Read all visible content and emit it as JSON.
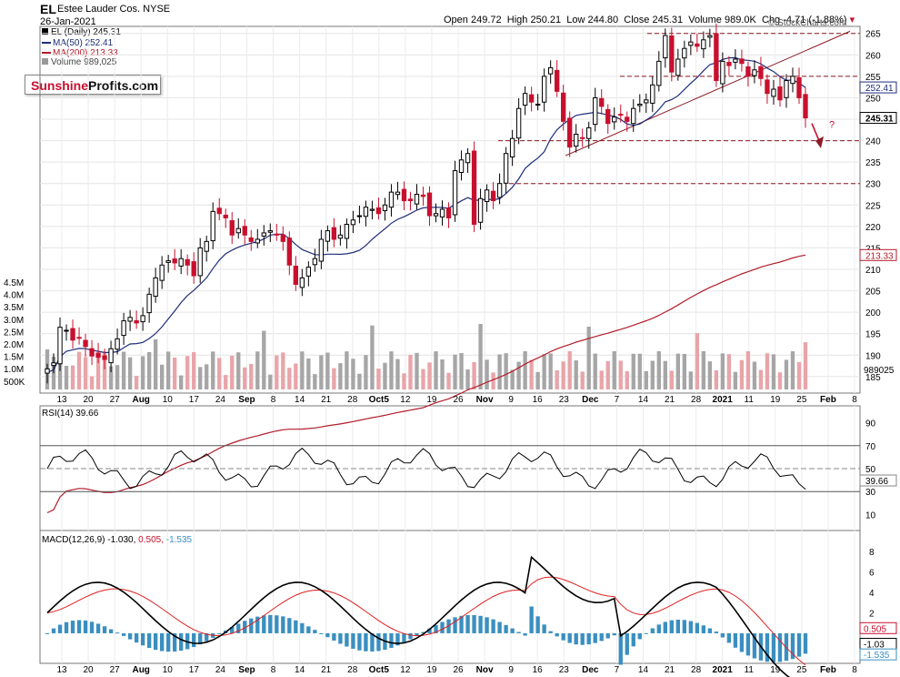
{
  "header": {
    "symbol": "EL",
    "company": "Estee Lauder Cos. NYSE",
    "date": "26-Jan-2021",
    "open_label": "Open",
    "open": "249.72",
    "high_label": "High",
    "high": "250.21",
    "low_label": "Low",
    "low": "244.80",
    "close_label": "Close",
    "close": "245.31",
    "volume_label": "Volume",
    "volume": "989.0K",
    "chg_label": "Chg",
    "chg": "-4.71 (-1.88%)",
    "copyright": "© StockCharts.com"
  },
  "legend": {
    "price": "EL (Daily) 245.31",
    "ma50": "MA(50) 252.41",
    "ma200": "MA(200) 213.33",
    "volume": "Volume 989,025"
  },
  "logo": {
    "part1": "Sunshine",
    "part2": "Profits.com"
  },
  "annotation": {
    "question": "?"
  },
  "rsi_label": "RSI(14) 39.66",
  "macd_label": {
    "title": "MACD(12,26,9)",
    "macd": "-1.030,",
    "signal": "0.505,",
    "hist": "-1.535"
  },
  "colors": {
    "up": "#000000",
    "down": "#c8102e",
    "ma50": "#1f2d7a",
    "ma200": "#b31b2a",
    "vol_up": "#a6a6a6",
    "vol_down": "#e8a5a9",
    "macd_hist": "#3a8fc0",
    "rsi_fill": "#4e7a4e"
  },
  "chart_data": [
    {
      "type": "candlestick",
      "title": "EL (Daily) 245.31",
      "x": [
        "13",
        "20",
        "27",
        "Aug",
        "10",
        "17",
        "24",
        "Sep",
        "8",
        "14",
        "21",
        "28",
        "Oct5",
        "12",
        "19",
        "26",
        "Nov",
        "9",
        "16",
        "23",
        "Dec",
        "7",
        "14",
        "21",
        "28",
        "2021",
        "11",
        "19",
        "25",
        "Feb",
        "8"
      ],
      "x_ticks": [
        "13",
        "20",
        "27",
        "Aug",
        "10",
        "17",
        "24",
        "Sep",
        "8",
        "14",
        "21",
        "28",
        "Oct5",
        "12",
        "19",
        "26",
        "Nov",
        "9",
        "16",
        "23",
        "Dec",
        "7",
        "14",
        "21",
        "28",
        "2021",
        "11",
        "19",
        "25",
        "Feb",
        "8"
      ],
      "price_ticks": [
        185,
        190,
        195,
        200,
        205,
        210,
        215,
        220,
        225,
        230,
        235,
        240,
        245,
        250,
        255,
        260,
        265
      ],
      "ylim": [
        182,
        266
      ],
      "volume_ticks": [
        "4.5M",
        "4.0M",
        "3.5M",
        "3.0M",
        "2.5M",
        "2.0M",
        "1.5M",
        "1.0M",
        "500K"
      ],
      "ma50_end": 252.41,
      "ma200_end": 213.33,
      "last_close": 245.31,
      "volume_last": "989025",
      "horizontal_levels": [
        265,
        255,
        240,
        230
      ],
      "closes": [
        186.8,
        188.2,
        196.5,
        195.8,
        193.5,
        194.0,
        192.0,
        189.8,
        189.5,
        189.0,
        191.5,
        193.8,
        198.0,
        198.8,
        197.5,
        199.2,
        204.2,
        208.0,
        211.0,
        212.0,
        211.5,
        212.5,
        211.0,
        208.5,
        215.0,
        216.5,
        223.5,
        223.0,
        222.0,
        218.0,
        219.5,
        218.0,
        216.5,
        217.0,
        218.5,
        219.0,
        218.0,
        216.5,
        211.0,
        206.5,
        208.0,
        210.5,
        212.5,
        217.0,
        219.0,
        217.0,
        218.0,
        220.5,
        221.5,
        222.5,
        224.5,
        224.0,
        223.0,
        225.0,
        228.0,
        228.0,
        226.0,
        226.0,
        227.5,
        227.0,
        222.5,
        223.0,
        224.0,
        222.0,
        233.0,
        235.5,
        237.0,
        220.5,
        226.5,
        228.5,
        226.0,
        230.0,
        237.0,
        240.5,
        247.5,
        251.0,
        249.0,
        248.5,
        255.0,
        257.0,
        251.5,
        244.5,
        238.5,
        241.5,
        240.5,
        243.0,
        250.0,
        248.0,
        244.0,
        245.5,
        246.0,
        244.5,
        247.5,
        248.5,
        249.5,
        253.0,
        258.5,
        264.5,
        256.0,
        259.0,
        261.5,
        263.0,
        262.0,
        263.5,
        264.5,
        254.0,
        258.5,
        257.5,
        259.0,
        258.0,
        255.0,
        256.5,
        254.5,
        251.0,
        252.0,
        249.5,
        254.0,
        255.0,
        250.0,
        245.31
      ],
      "rsi": {
        "values_shape": "oscillating",
        "last": 39.66,
        "levels": [
          70,
          30
        ],
        "ticks": [
          90,
          70,
          50,
          30,
          10
        ]
      },
      "macd": {
        "macd": -1.03,
        "signal": 0.505,
        "hist": -1.535,
        "ticks": [
          8,
          6,
          4,
          2
        ]
      }
    }
  ]
}
